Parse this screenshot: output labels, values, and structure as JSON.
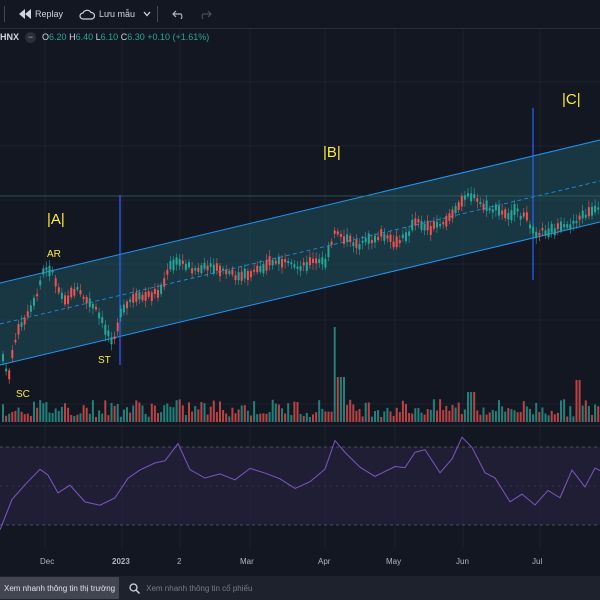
{
  "toolbar": {
    "replay_label": "Replay",
    "save_label": "Lưu mẫu"
  },
  "legend": {
    "exchange": "HNX",
    "open_key": "O",
    "open": "6.20",
    "high_key": "H",
    "high": "6.40",
    "low_key": "L",
    "low": "6.10",
    "close_key": "C",
    "close": "6.30",
    "change": "+0.10 (+1.61%)"
  },
  "annotations": {
    "phase_a": "|A|",
    "phase_b": "|B|",
    "phase_c": "|C|",
    "ar": "AR",
    "st": "ST",
    "sc": "SC"
  },
  "time_axis": {
    "labels": [
      "Dec",
      "2023",
      "2",
      "Mar",
      "Apr",
      "May",
      "Jun",
      "Jul"
    ]
  },
  "bottom_bar": {
    "market_button": "Xem nhanh thông tin thị trường",
    "stock_search_placeholder": "Xem nhanh thông tin cổ phiếu"
  },
  "colors": {
    "background": "#131722",
    "up_candle": "#26a69a",
    "down_candle": "#ef5350",
    "channel_line": "#2196f3",
    "channel_fill": "#1f5f6b",
    "rsi_line": "#7e57c2",
    "annotation_text": "#ffeb3b"
  }
}
